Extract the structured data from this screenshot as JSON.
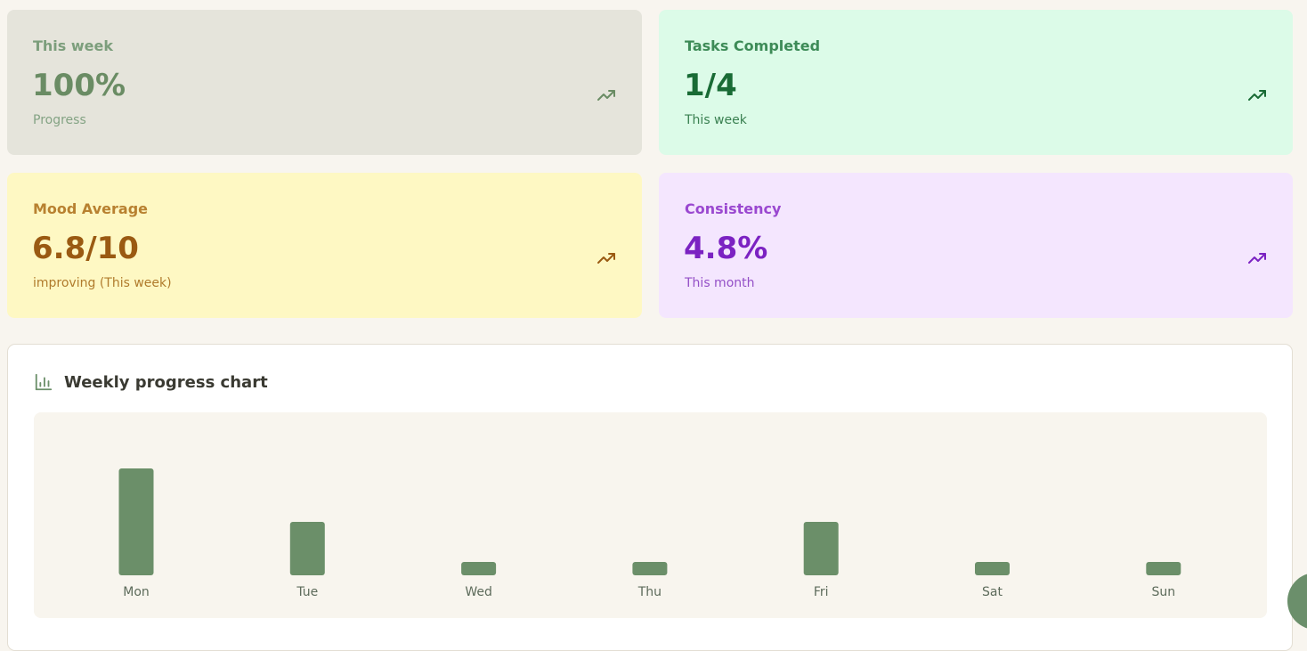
{
  "stats": {
    "week": {
      "label": "This week",
      "value": "100%",
      "sub": "Progress",
      "color": "#6a8c64",
      "icon": "trend-up-icon"
    },
    "tasks": {
      "label": "Tasks Completed",
      "value": "1/4",
      "sub": "This week",
      "color": "#196b35",
      "icon": "trend-up-icon"
    },
    "mood": {
      "label": "Mood Average",
      "value": "6.8/10",
      "sub": "improving (This week)",
      "color": "#9a5a12",
      "icon": "trend-up-icon"
    },
    "consistency": {
      "label": "Consistency",
      "value": "4.8%",
      "sub": "This month",
      "color": "#7b22c2",
      "icon": "trend-up-icon"
    }
  },
  "chart_section": {
    "title": "Weekly progress chart",
    "icon": "bar-chart-icon"
  },
  "chart_data": {
    "type": "bar",
    "categories": [
      "Mon",
      "Tue",
      "Wed",
      "Thu",
      "Fri",
      "Sat",
      "Sun"
    ],
    "values": [
      8,
      4,
      1,
      1,
      4,
      1,
      1
    ],
    "ylim": [
      0,
      8
    ],
    "bar_color": "#6b8f69",
    "grid": false,
    "legend": "none"
  },
  "chat_button": {
    "icon": "chat-icon",
    "color": "#6b8f6b"
  }
}
